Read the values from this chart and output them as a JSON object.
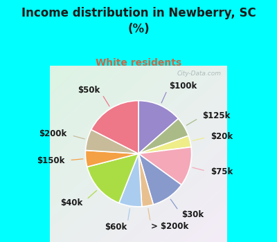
{
  "title": "Income distribution in Newberry, SC\n(%)",
  "subtitle": "White residents",
  "title_color": "#1a1a1a",
  "subtitle_color": "#cc6644",
  "background_fig": "#00ffff",
  "background_chart": "#d8ede0",
  "watermark": "City-Data.com",
  "slices": [
    {
      "label": "$100k",
      "value": 13.5,
      "color": "#9988cc"
    },
    {
      "label": "$125k",
      "value": 6.0,
      "color": "#aabb88"
    },
    {
      "label": "$20k",
      "value": 3.5,
      "color": "#eeed88"
    },
    {
      "label": "$75k",
      "value": 12.0,
      "color": "#f4a8b8"
    },
    {
      "label": "$30k",
      "value": 10.5,
      "color": "#8899cc"
    },
    {
      "label": "> $200k",
      "value": 3.5,
      "color": "#e8c090"
    },
    {
      "label": "$60k",
      "value": 7.0,
      "color": "#aaccee"
    },
    {
      "label": "$40k",
      "value": 15.0,
      "color": "#aadd44"
    },
    {
      "label": "$150k",
      "value": 5.0,
      "color": "#f4a044"
    },
    {
      "label": "$200k",
      "value": 6.5,
      "color": "#c8bb99"
    },
    {
      "label": "$50k",
      "value": 17.5,
      "color": "#ee7788"
    }
  ],
  "label_fontsize": 8.5,
  "label_color": "#1a1a1a",
  "figsize": [
    4.0,
    3.5
  ],
  "dpi": 100
}
